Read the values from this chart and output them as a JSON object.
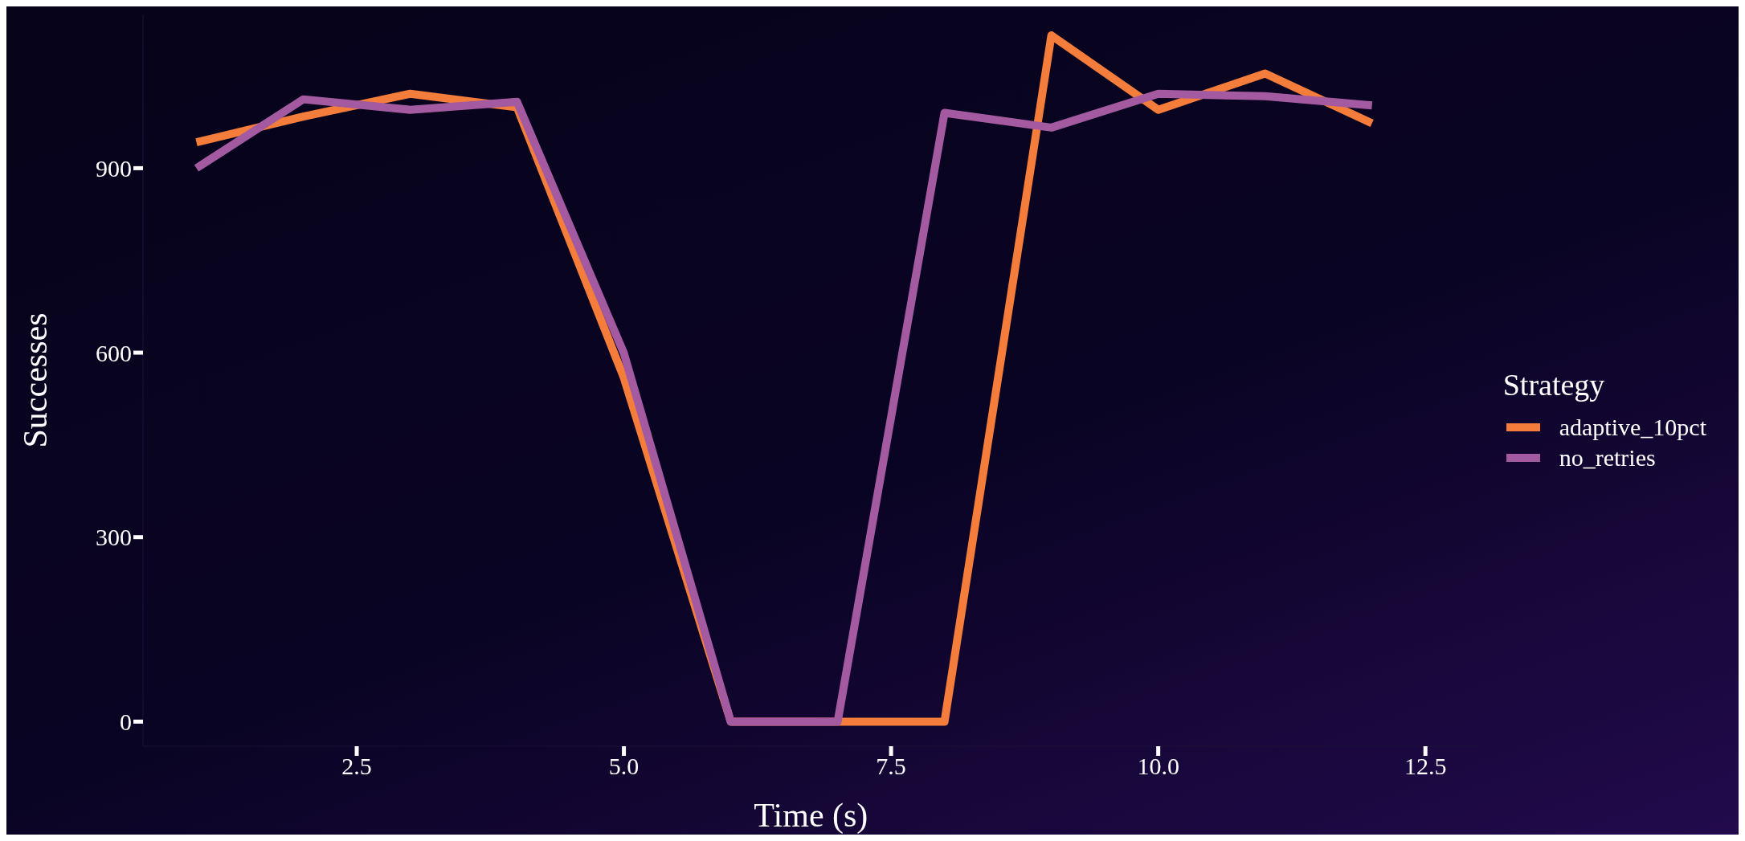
{
  "chart_data": {
    "type": "line",
    "xlabel": "Time (s)",
    "ylabel": "Successes",
    "legend_title": "Strategy",
    "x": [
      1,
      2,
      3,
      4,
      5,
      6,
      7,
      8,
      9,
      10,
      11,
      12
    ],
    "series": [
      {
        "name": "adaptive_10pct",
        "color": "#f57d3c",
        "values": [
          942,
          984,
          1021,
          999,
          559,
          0,
          0,
          0,
          1116,
          995,
          1054,
          973
        ]
      },
      {
        "name": "no_retries",
        "color": "#a45aa0",
        "values": [
          900,
          1012,
          995,
          1008,
          599,
          0,
          0,
          990,
          966,
          1021,
          1017,
          1002
        ]
      }
    ],
    "xlim": [
      0.5,
      13
    ],
    "xticks": [
      {
        "value": 2.5,
        "label": "2.5"
      },
      {
        "value": 5,
        "label": "5.0"
      },
      {
        "value": 7.5,
        "label": "7.5"
      },
      {
        "value": 10,
        "label": "10.0"
      },
      {
        "value": 12.5,
        "label": "12.5"
      }
    ],
    "ylim": [
      -40,
      1150
    ],
    "yticks": [
      0,
      300,
      600,
      900
    ],
    "grid": false,
    "legend": "right",
    "marker": "none",
    "line_style": "solid"
  }
}
